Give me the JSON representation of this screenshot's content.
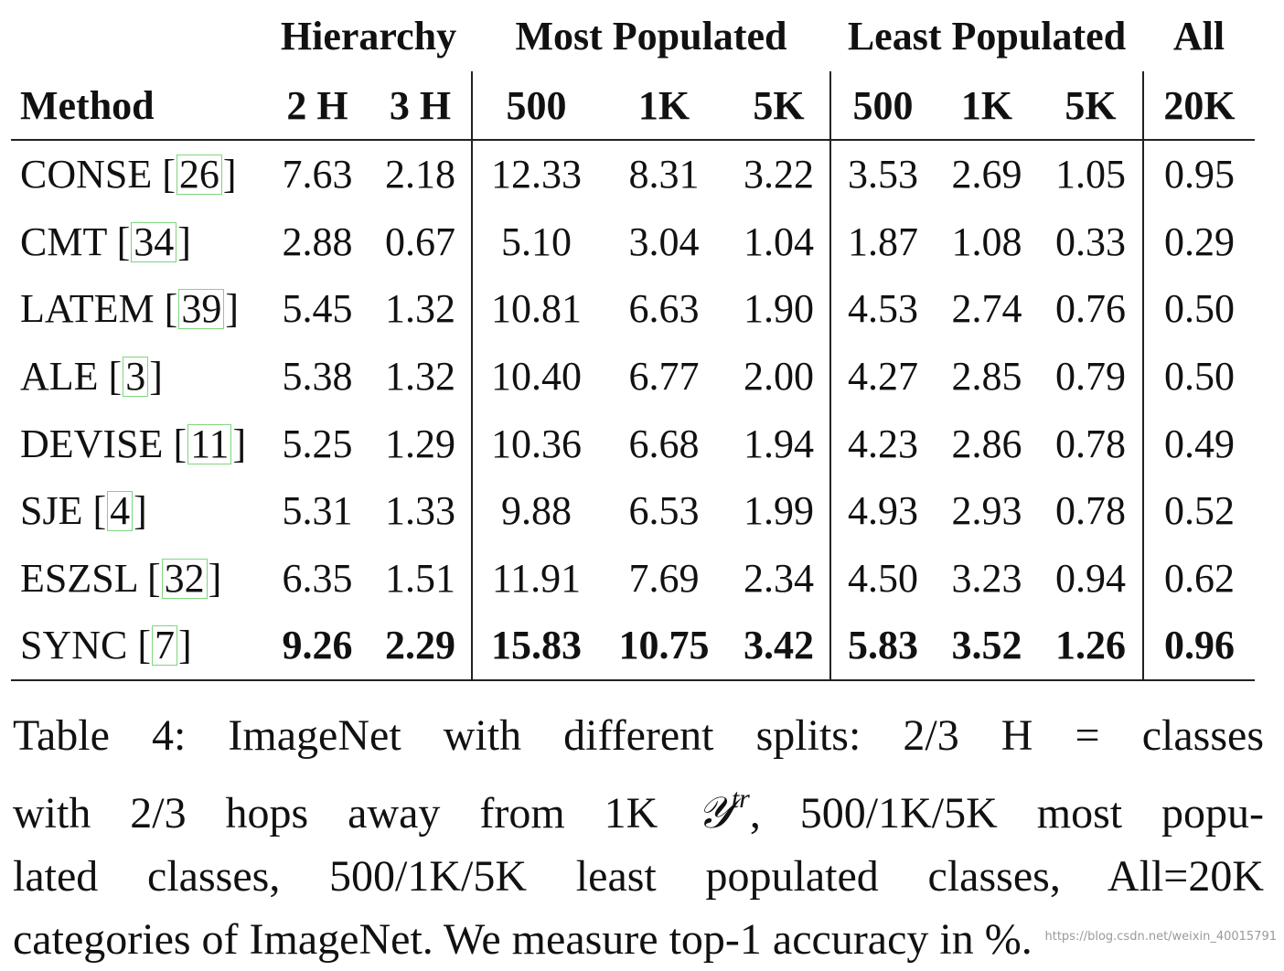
{
  "table": {
    "groups": [
      {
        "label": ""
      },
      {
        "label": "Hierarchy"
      },
      {
        "label": "Most Populated"
      },
      {
        "label": "Least Populated"
      },
      {
        "label": "All"
      }
    ],
    "columns": [
      "Method",
      "2 H",
      "3 H",
      "500",
      "1K",
      "5K",
      "500",
      "1K",
      "5K",
      "20K"
    ],
    "rows": [
      {
        "method": "CONSE",
        "cite": "26",
        "values": [
          "7.63",
          "2.18",
          "12.33",
          "8.31",
          "3.22",
          "3.53",
          "2.69",
          "1.05",
          "0.95"
        ]
      },
      {
        "method": "CMT",
        "cite": "34",
        "values": [
          "2.88",
          "0.67",
          "5.10",
          "3.04",
          "1.04",
          "1.87",
          "1.08",
          "0.33",
          "0.29"
        ]
      },
      {
        "method": "LATEM",
        "cite": "39",
        "values": [
          "5.45",
          "1.32",
          "10.81",
          "6.63",
          "1.90",
          "4.53",
          "2.74",
          "0.76",
          "0.50"
        ]
      },
      {
        "method": "ALE",
        "cite": "3",
        "values": [
          "5.38",
          "1.32",
          "10.40",
          "6.77",
          "2.00",
          "4.27",
          "2.85",
          "0.79",
          "0.50"
        ]
      },
      {
        "method": "DEVISE",
        "cite": "11",
        "values": [
          "5.25",
          "1.29",
          "10.36",
          "6.68",
          "1.94",
          "4.23",
          "2.86",
          "0.78",
          "0.49"
        ]
      },
      {
        "method": "SJE",
        "cite": "4",
        "values": [
          "5.31",
          "1.33",
          "9.88",
          "6.53",
          "1.99",
          "4.93",
          "2.93",
          "0.78",
          "0.52"
        ]
      },
      {
        "method": "ESZSL",
        "cite": "32",
        "values": [
          "6.35",
          "1.51",
          "11.91",
          "7.69",
          "2.34",
          "4.50",
          "3.23",
          "0.94",
          "0.62"
        ]
      },
      {
        "method": "SYNC",
        "cite": "7",
        "values": [
          "9.26",
          "2.29",
          "15.83",
          "10.75",
          "3.42",
          "5.83",
          "3.52",
          "1.26",
          "0.96"
        ]
      }
    ],
    "bold_row_index": 7,
    "cite_box_color": "#7ed67e"
  },
  "caption": {
    "line1": "Table 4: ImageNet with different splits: 2/3 H = classes",
    "line2_pre": "with 2/3 hops away from 1K ",
    "line2_symbol": "𝒴",
    "line2_sup": "tr",
    "line2_post": ", 500/1K/5K most popu-",
    "line3": "lated classes, 500/1K/5K least populated classes, All=20K",
    "line4": "categories of ImageNet. We measure top-1 accuracy in %."
  },
  "watermark": "https://blog.csdn.net/weixin_40015791"
}
